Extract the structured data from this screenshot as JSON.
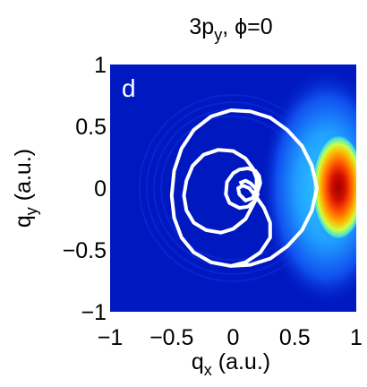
{
  "chart_data": {
    "type": "heatmap",
    "title": "3p",
    "title_subscript": "y",
    "title_suffix": ", ϕ=0",
    "panel_label": "d",
    "xlabel": "q",
    "xlabel_subscript": "x",
    "xlabel_unit": " (a.u.)",
    "ylabel": "q",
    "ylabel_subscript": "y",
    "ylabel_unit": " (a.u.)",
    "xlim": [
      -1,
      1
    ],
    "ylim": [
      -1,
      1
    ],
    "x_ticks": [
      -1,
      -0.5,
      0,
      0.5,
      1
    ],
    "x_tick_labels": [
      "−1",
      "−0.5",
      "0",
      "0.5",
      "1"
    ],
    "y_ticks": [
      1,
      0.5,
      0,
      -0.5,
      -1
    ],
    "y_tick_labels": [
      "1",
      "0.5",
      "0",
      "−0.5",
      "−1"
    ],
    "colormap": "jet",
    "intensity_peak": {
      "qx": 0.85,
      "qy": 0.0
    },
    "curve": {
      "description": "closed white looping trajectory",
      "color": "#ffffff",
      "points_qx_qy": [
        [
          0.05,
          0.04
        ],
        [
          0.1,
          0.06
        ],
        [
          0.14,
          0.04
        ],
        [
          0.18,
          0.0
        ],
        [
          0.2,
          -0.05
        ],
        [
          0.18,
          -0.1
        ],
        [
          0.12,
          -0.15
        ],
        [
          0.05,
          -0.16
        ],
        [
          -0.03,
          -0.12
        ],
        [
          -0.06,
          -0.05
        ],
        [
          -0.05,
          0.05
        ],
        [
          0.0,
          0.12
        ],
        [
          0.05,
          0.15
        ],
        [
          0.12,
          0.16
        ],
        [
          0.18,
          0.14
        ],
        [
          0.21,
          0.1
        ],
        [
          0.22,
          0.04
        ],
        [
          0.2,
          -0.02
        ],
        [
          0.18,
          -0.1
        ],
        [
          0.1,
          -0.25
        ],
        [
          0.0,
          -0.33
        ],
        [
          -0.1,
          -0.36
        ],
        [
          -0.22,
          -0.34
        ],
        [
          -0.32,
          -0.28
        ],
        [
          -0.38,
          -0.18
        ],
        [
          -0.4,
          -0.06
        ],
        [
          -0.38,
          0.06
        ],
        [
          -0.33,
          0.18
        ],
        [
          -0.24,
          0.27
        ],
        [
          -0.12,
          0.31
        ],
        [
          0.0,
          0.3
        ],
        [
          0.1,
          0.24
        ],
        [
          0.16,
          0.16
        ],
        [
          0.19,
          0.08
        ],
        [
          0.19,
          0.0
        ],
        [
          0.16,
          -0.08
        ],
        [
          0.1,
          -0.1
        ],
        [
          0.05,
          -0.05
        ],
        [
          0.04,
          0.0
        ],
        [
          0.08,
          0.02
        ],
        [
          0.13,
          0.0
        ],
        [
          0.18,
          -0.06
        ],
        [
          0.25,
          -0.16
        ],
        [
          0.3,
          -0.28
        ],
        [
          0.3,
          -0.4
        ],
        [
          0.22,
          -0.52
        ],
        [
          0.1,
          -0.6
        ],
        [
          -0.02,
          -0.63
        ],
        [
          -0.18,
          -0.6
        ],
        [
          -0.32,
          -0.52
        ],
        [
          -0.42,
          -0.4
        ],
        [
          -0.48,
          -0.24
        ],
        [
          -0.5,
          -0.06
        ],
        [
          -0.48,
          0.14
        ],
        [
          -0.42,
          0.32
        ],
        [
          -0.32,
          0.47
        ],
        [
          -0.18,
          0.58
        ],
        [
          -0.02,
          0.63
        ],
        [
          0.14,
          0.62
        ],
        [
          0.3,
          0.57
        ],
        [
          0.44,
          0.47
        ],
        [
          0.56,
          0.34
        ],
        [
          0.64,
          0.18
        ],
        [
          0.68,
          0.0
        ],
        [
          0.64,
          -0.18
        ],
        [
          0.56,
          -0.34
        ],
        [
          0.44,
          -0.47
        ],
        [
          0.3,
          -0.57
        ],
        [
          0.14,
          -0.62
        ],
        [
          -0.02,
          -0.63
        ]
      ]
    }
  }
}
